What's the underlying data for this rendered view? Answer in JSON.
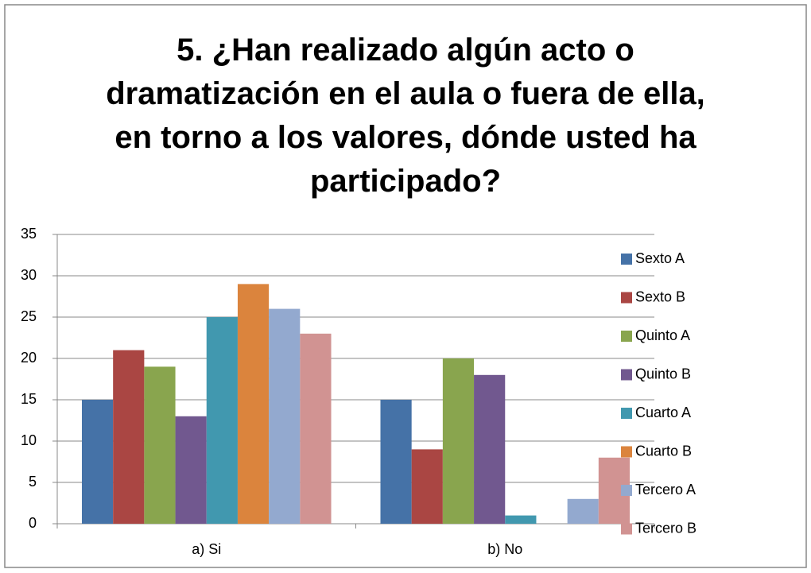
{
  "chart_data": {
    "type": "bar",
    "title": "5. ¿Han realizado algún acto o dramatización en el aula o fuera de ella, en torno a los valores, dónde usted ha participado?",
    "categories": [
      "a) Si",
      "b) No"
    ],
    "series": [
      {
        "name": "Sexto A",
        "color": "#4572a7",
        "values": [
          15,
          15
        ]
      },
      {
        "name": "Sexto B",
        "color": "#aa4643",
        "values": [
          21,
          9
        ]
      },
      {
        "name": "Quinto A",
        "color": "#89a54e",
        "values": [
          19,
          20
        ]
      },
      {
        "name": "Quinto B",
        "color": "#71588f",
        "values": [
          13,
          18
        ]
      },
      {
        "name": "Cuarto A",
        "color": "#4198af",
        "values": [
          25,
          1
        ]
      },
      {
        "name": "Cuarto B",
        "color": "#db843d",
        "values": [
          29,
          0
        ]
      },
      {
        "name": "Tercero A",
        "color": "#93a9cf",
        "values": [
          26,
          3
        ]
      },
      {
        "name": "Tercero B",
        "color": "#d19392",
        "values": [
          23,
          8
        ]
      }
    ],
    "ylim": [
      0,
      35
    ],
    "yticks": [
      0,
      5,
      10,
      15,
      20,
      25,
      30,
      35
    ],
    "grid": true,
    "legend": "right"
  }
}
